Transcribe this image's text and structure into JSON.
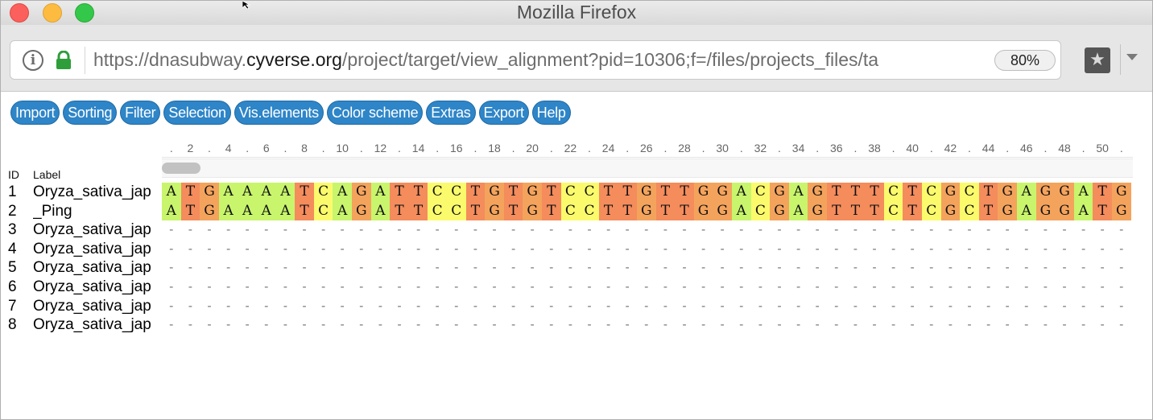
{
  "window": {
    "title": "Mozilla Firefox"
  },
  "urlbar": {
    "url_prefix": "https://dnasubway.",
    "url_domain": "cyverse.org",
    "url_path": "/project/target/view_alignment?pid=10306;f=/files/projects_files/ta",
    "zoom": "80%"
  },
  "icons": {
    "info": "info-icon",
    "lock": "lock-icon",
    "extension": "star-extension-icon",
    "menu": "chevron-down-icon"
  },
  "menu": [
    "Import",
    "Sorting",
    "Filter",
    "Selection",
    "Vis.elements",
    "Color scheme",
    "Extras",
    "Export",
    "Help"
  ],
  "ruler_ticks": [
    "2",
    "4",
    "6",
    "8",
    "10",
    "12",
    "14",
    "16",
    "18",
    "20",
    "22",
    "24",
    "26",
    "28",
    "30",
    "32",
    "34",
    "36",
    "38",
    "40",
    "42",
    "44",
    "46",
    "48",
    "50"
  ],
  "table_header": {
    "id": "ID",
    "label": "Label"
  },
  "rows": [
    {
      "id": "1",
      "label": "Oryza_sativa_jap",
      "seq": "ATGAAAATCAGATTCCTGTGTCCTTGTTGGACGAGTTTCTCGCTGAGGATG"
    },
    {
      "id": "2",
      "label": "_Ping",
      "seq": "ATGAAAATCAGATTCCTGTGTCCTTGTTGGACGAGTTTCTCGCTGAGGATG"
    },
    {
      "id": "3",
      "label": "Oryza_sativa_jap",
      "seq": "---------------------------------------------------"
    },
    {
      "id": "4",
      "label": "Oryza_sativa_jap",
      "seq": "---------------------------------------------------"
    },
    {
      "id": "5",
      "label": "Oryza_sativa_jap",
      "seq": "---------------------------------------------------"
    },
    {
      "id": "6",
      "label": "Oryza_sativa_jap",
      "seq": "---------------------------------------------------"
    },
    {
      "id": "7",
      "label": "Oryza_sativa_jap",
      "seq": "---------------------------------------------------"
    },
    {
      "id": "8",
      "label": "Oryza_sativa_jap",
      "seq": "---------------------------------------------------"
    }
  ],
  "colors": {
    "A": "#c8f56c",
    "T": "#f48c5c",
    "G": "#f4a35c",
    "C": "#fafa6c",
    "menu_button": "#2e85c8"
  }
}
